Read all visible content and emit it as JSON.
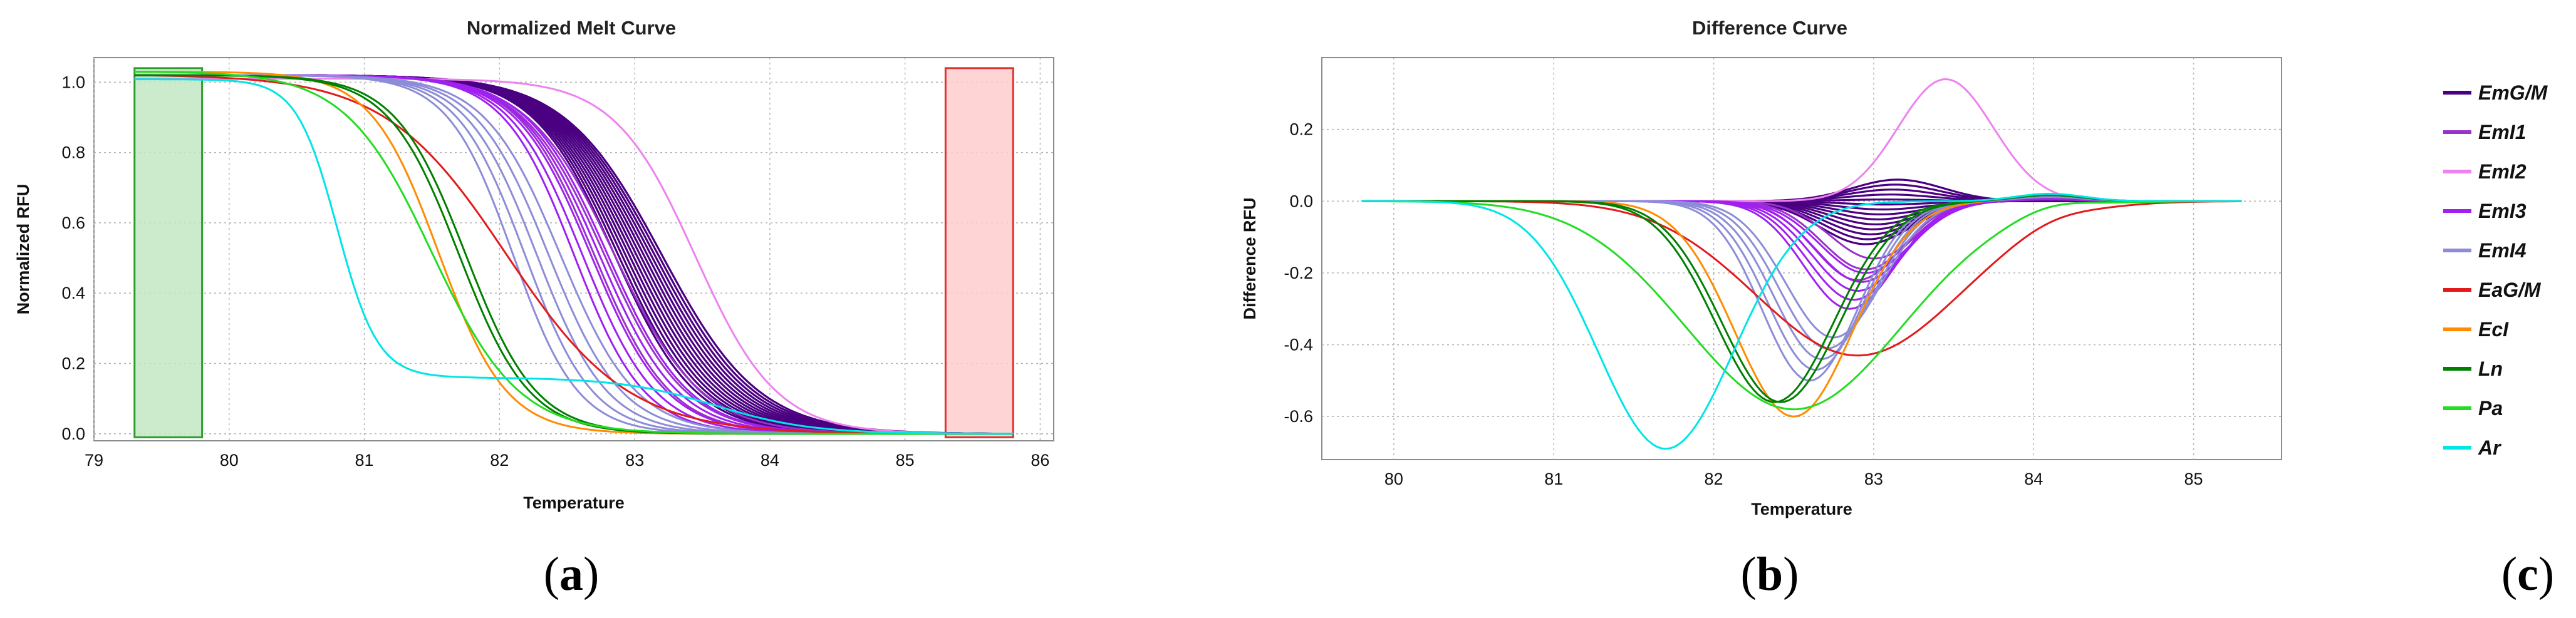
{
  "chart_data": [
    {
      "type": "line",
      "title": "Normalized Melt Curve",
      "xlabel": "Temperature",
      "ylabel": "Normalized RFU",
      "xlim": [
        79,
        86.1
      ],
      "ylim": [
        -0.02,
        1.07
      ],
      "xticks": [
        79,
        80,
        81,
        82,
        83,
        84,
        85,
        86
      ],
      "yticks": [
        0.0,
        0.2,
        0.4,
        0.6,
        0.8,
        1.0
      ],
      "ytick_labels": [
        "0.0",
        "0.2",
        "0.4",
        "0.6",
        "0.8",
        "1.0"
      ],
      "grid": true,
      "shaded_regions": [
        {
          "x": [
            79.3,
            79.8
          ],
          "color": "#c3e6c3",
          "edge": "#2e9e2e"
        },
        {
          "x": [
            85.3,
            85.8
          ],
          "color": "#ffcccc",
          "edge": "#e03030"
        }
      ],
      "model": "sigmoid",
      "x_start": 79.3,
      "x_end": 85.8,
      "series": [
        {
          "name": "EmG/M",
          "color": "#4b0082",
          "count": 14,
          "midpoint_range": [
            82.85,
            83.2
          ],
          "width_range": [
            0.3,
            0.36
          ],
          "start_value": 1.02
        },
        {
          "name": "EmI1",
          "color": "#9932cc",
          "count": 3,
          "midpoint_range": [
            82.7,
            82.85
          ],
          "width_range": [
            0.28,
            0.32
          ],
          "start_value": 1.02
        },
        {
          "name": "EmI2",
          "color": "#ee82ee",
          "count": 1,
          "midpoint_range": [
            83.45,
            83.45
          ],
          "width_range": [
            0.3,
            0.3
          ],
          "start_value": 1.01
        },
        {
          "name": "EmI3",
          "color": "#a020f0",
          "count": 5,
          "midpoint_range": [
            82.55,
            82.8
          ],
          "width_range": [
            0.26,
            0.3
          ],
          "start_value": 1.02
        },
        {
          "name": "EmI4",
          "color": "#8c8cd8",
          "count": 5,
          "midpoint_range": [
            82.1,
            82.45
          ],
          "width_range": [
            0.24,
            0.28
          ],
          "start_value": 1.02
        },
        {
          "name": "EaG/M",
          "color": "#e31a1c",
          "count": 1,
          "midpoint_range": [
            82.05,
            82.05
          ],
          "width_range": [
            0.45,
            0.45
          ],
          "start_value": 1.02
        },
        {
          "name": "EcI",
          "color": "#ff8c00",
          "count": 1,
          "midpoint_range": [
            81.55,
            81.55
          ],
          "width_range": [
            0.25,
            0.25
          ],
          "start_value": 1.03
        },
        {
          "name": "Ln",
          "color": "#008000",
          "count": 2,
          "midpoint_range": [
            81.7,
            81.75
          ],
          "width_range": [
            0.26,
            0.26
          ],
          "start_value": 1.02
        },
        {
          "name": "Pa",
          "color": "#22dd22",
          "count": 1,
          "midpoint_range": [
            81.5,
            81.5
          ],
          "width_range": [
            0.32,
            0.32
          ],
          "start_value": 1.03
        },
        {
          "name": "Ar",
          "color": "#00e5e5",
          "count": 1,
          "midpoint_range": [
            80.8,
            80.8
          ],
          "width_range": [
            0.15,
            0.15
          ],
          "start_value": 1.01,
          "shoulder": true
        }
      ]
    },
    {
      "type": "line",
      "title": "Difference Curve",
      "xlabel": "Temperature",
      "ylabel": "Difference RFU",
      "xlim": [
        79.55,
        85.55
      ],
      "ylim": [
        -0.72,
        0.4
      ],
      "xticks": [
        80,
        81,
        82,
        83,
        84,
        85
      ],
      "yticks": [
        -0.6,
        -0.4,
        -0.2,
        0.0,
        0.2
      ],
      "ytick_labels": [
        "-0.6",
        "-0.4",
        "-0.2",
        "0.0",
        "0.2"
      ],
      "grid": true,
      "x_start": 79.8,
      "x_end": 85.3,
      "series": [
        {
          "name": "EmG/M",
          "color": "#4b0082",
          "count": 14,
          "peak_x_range": [
            82.95,
            83.15
          ],
          "amplitude_range": [
            -0.12,
            0.06
          ],
          "width": 0.4
        },
        {
          "name": "EmI1",
          "color": "#9932cc",
          "count": 3,
          "peak_x_range": [
            82.9,
            83.0
          ],
          "amplitude_range": [
            -0.22,
            -0.16
          ],
          "width": 0.38
        },
        {
          "name": "EmI2",
          "color": "#ee82ee",
          "count": 1,
          "peak_x_range": [
            83.45,
            83.45
          ],
          "amplitude_range": [
            0.34,
            0.34
          ],
          "width": 0.42
        },
        {
          "name": "EmI3",
          "color": "#a020f0",
          "count": 5,
          "peak_x_range": [
            82.85,
            82.95
          ],
          "amplitude_range": [
            -0.3,
            -0.2
          ],
          "width": 0.4
        },
        {
          "name": "EmI4",
          "color": "#8c8cd8",
          "count": 5,
          "peak_x_range": [
            82.6,
            82.75
          ],
          "amplitude_range": [
            -0.5,
            -0.38
          ],
          "width": 0.42
        },
        {
          "name": "EaG/M",
          "color": "#e31a1c",
          "count": 1,
          "peak_x_range": [
            82.9,
            82.9
          ],
          "amplitude_range": [
            -0.43,
            -0.43
          ],
          "width": 0.9
        },
        {
          "name": "EcI",
          "color": "#ff8c00",
          "count": 1,
          "peak_x_range": [
            82.5,
            82.5
          ],
          "amplitude_range": [
            -0.6,
            -0.6
          ],
          "width": 0.52
        },
        {
          "name": "Ln",
          "color": "#008000",
          "count": 2,
          "peak_x_range": [
            82.38,
            82.42
          ],
          "amplitude_range": [
            -0.56,
            -0.56
          ],
          "width": 0.52
        },
        {
          "name": "Pa",
          "color": "#22dd22",
          "count": 1,
          "peak_x_range": [
            82.5,
            82.5
          ],
          "amplitude_range": [
            -0.58,
            -0.58
          ],
          "width": 0.95
        },
        {
          "name": "Ar",
          "color": "#00e5e5",
          "count": 1,
          "peak_x_range": [
            81.7,
            81.7
          ],
          "amplitude_range": [
            -0.69,
            -0.69
          ],
          "width": 0.6
        }
      ]
    }
  ],
  "legend": {
    "placement": "right",
    "entries": [
      {
        "label": "EmG/M",
        "color": "#4b0082"
      },
      {
        "label": "EmI1",
        "color": "#9932cc"
      },
      {
        "label": "EmI2",
        "color": "#ee82ee"
      },
      {
        "label": "EmI3",
        "color": "#a020f0"
      },
      {
        "label": "EmI4",
        "color": "#8c8cd8"
      },
      {
        "label": "EaG/M",
        "color": "#e31a1c"
      },
      {
        "label": "EcI",
        "color": "#ff8c00"
      },
      {
        "label": "Ln",
        "color": "#008000"
      },
      {
        "label": "Pa",
        "color": "#22dd22"
      },
      {
        "label": "Ar",
        "color": "#00e5e5"
      }
    ]
  },
  "panel_labels": {
    "a": "a",
    "b": "b",
    "c": "c",
    "open": "(",
    "close": ")"
  }
}
